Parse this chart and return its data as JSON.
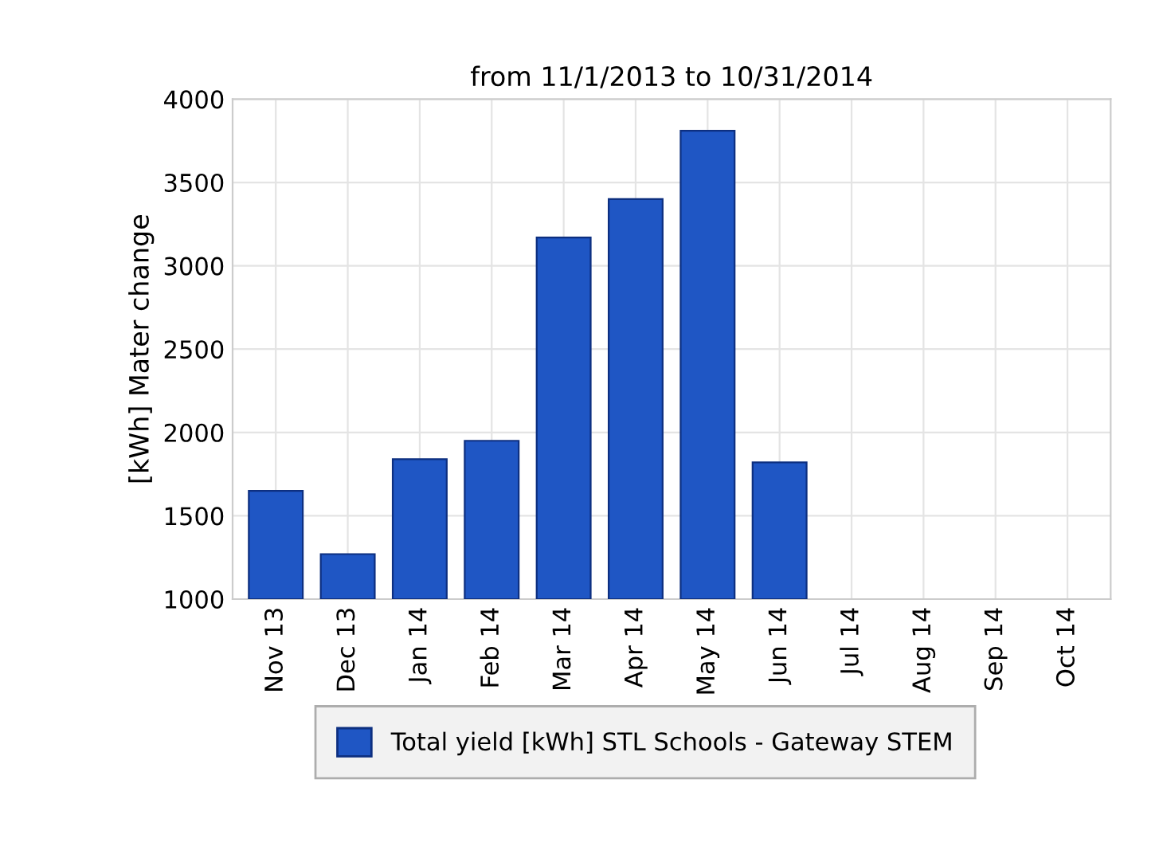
{
  "chart_data": {
    "type": "bar",
    "title": "from 11/1/2013 to 10/31/2014",
    "ylabel": "[kWh] Mater change",
    "categories": [
      "Nov 13",
      "Dec 13",
      "Jan 14",
      "Feb 14",
      "Mar 14",
      "Apr 14",
      "May 14",
      "Jun 14",
      "Jul 14",
      "Aug 14",
      "Sep 14",
      "Oct 14"
    ],
    "series": [
      {
        "name": "Total yield [kWh] STL Schools - Gateway STEM",
        "color": "#1f56c4",
        "values": [
          1650,
          1270,
          1840,
          1950,
          3170,
          3400,
          3810,
          1820,
          null,
          null,
          null,
          null
        ]
      }
    ],
    "ylim": [
      1000,
      4000
    ],
    "yticks": [
      1000,
      1500,
      2000,
      2500,
      3000,
      3500,
      4000
    ],
    "grid": true,
    "legend": "bottom"
  }
}
